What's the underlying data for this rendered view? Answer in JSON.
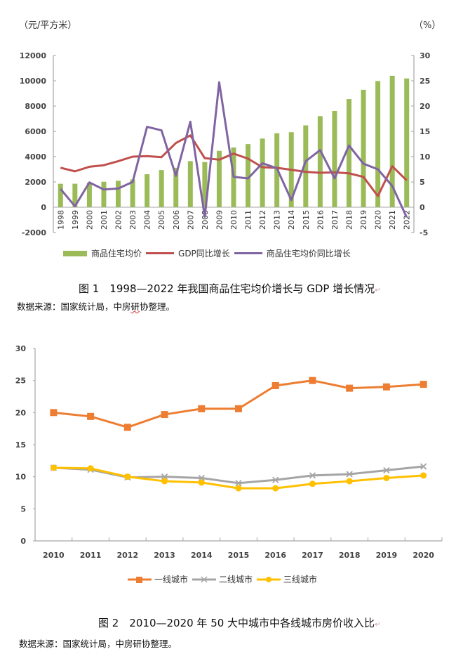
{
  "figure1": {
    "left_unit": "（元/平方米）",
    "right_unit": "（%）",
    "caption": "图 1　1998—2022 年我国商品住宅均价增长与 GDP 增长情况",
    "source_prefix": "数据来源：国家统计局，中房",
    "source_marked": "研",
    "source_suffix": "协整理。",
    "colors": {
      "bar": "#9bbb59",
      "gdp": "#c0504d",
      "price_growth": "#8064a2",
      "axis": "#a6a6a6"
    }
  },
  "figure2": {
    "caption": "图 2　2010—2020 年 50 大中城市中各线城市房价收入比",
    "source": "数据来源：国家统计局，中房研协整理。",
    "colors": {
      "tier1": "#ed7d31",
      "tier2": "#a5a5a5",
      "tier3": "#ffc000",
      "axis": "#a6a6a6"
    }
  },
  "chart_data": [
    {
      "type": "bar+line",
      "title": "1998—2022 年我国商品住宅均价增长与 GDP 增长情况",
      "categories": [
        "1998",
        "1999",
        "2000",
        "2001",
        "2002",
        "2003",
        "2004",
        "2005",
        "2006",
        "2007",
        "2008",
        "2009",
        "2010",
        "2011",
        "2012",
        "2013",
        "2014",
        "2015",
        "2016",
        "2017",
        "2018",
        "2019",
        "2020",
        "2021",
        "2022"
      ],
      "y_left": {
        "label": "（元/平方米）",
        "lim": [
          -2000,
          12000
        ],
        "ticks": [
          "-2000",
          "0",
          "2000",
          "4000",
          "6000",
          "8000",
          "10000",
          "12000"
        ]
      },
      "y_right": {
        "label": "（%）",
        "lim": [
          -5,
          30
        ],
        "ticks": [
          "-5",
          "0",
          "5",
          "10",
          "15",
          "20",
          "25",
          "30"
        ]
      },
      "series": [
        {
          "name": "商品住宅均价",
          "type": "bar",
          "axis": "left",
          "values": [
            1854,
            1857,
            1948,
            2017,
            2092,
            2197,
            2608,
            2937,
            3119,
            3645,
            3576,
            4459,
            4725,
            4993,
            5430,
            5850,
            5933,
            6473,
            7203,
            7614,
            8553,
            9287,
            9980,
            10396,
            10185
          ]
        },
        {
          "name": "GDP同比增长",
          "type": "line",
          "axis": "right",
          "values": [
            7.8,
            7.1,
            8.0,
            8.3,
            9.1,
            10.0,
            10.1,
            9.9,
            12.7,
            14.2,
            9.7,
            9.4,
            10.6,
            9.6,
            7.9,
            7.8,
            7.4,
            7.0,
            6.8,
            6.9,
            6.7,
            6.0,
            2.2,
            8.1,
            5.3
          ]
        },
        {
          "name": "商品住宅均价同比增长",
          "type": "line",
          "axis": "right",
          "values": [
            3.6,
            0.2,
            4.9,
            3.5,
            3.7,
            5.0,
            15.9,
            15.2,
            6.2,
            16.9,
            -1.9,
            24.7,
            6.0,
            5.7,
            8.7,
            7.7,
            1.4,
            9.1,
            11.3,
            5.7,
            12.2,
            8.6,
            7.5,
            4.2,
            -2.0
          ]
        }
      ],
      "legend": "bottom",
      "grid": false
    },
    {
      "type": "line",
      "title": "2010—2020 年 50 大中城市中各线城市房价收入比",
      "categories": [
        "2010",
        "2011",
        "2012",
        "2013",
        "2014",
        "2015",
        "2016",
        "2017",
        "2018",
        "2019",
        "2020"
      ],
      "ylim": [
        0,
        30
      ],
      "yticks": [
        "0",
        "5",
        "10",
        "15",
        "20",
        "25",
        "30"
      ],
      "series": [
        {
          "name": "一线城市",
          "marker": "square",
          "values": [
            20.0,
            19.4,
            17.7,
            19.7,
            20.6,
            20.6,
            24.2,
            25.0,
            23.8,
            24.0,
            24.4
          ]
        },
        {
          "name": "二线城市",
          "marker": "x",
          "values": [
            11.4,
            11.1,
            9.9,
            10.0,
            9.8,
            9.0,
            9.5,
            10.2,
            10.4,
            11.0,
            11.6
          ]
        },
        {
          "name": "三线城市",
          "marker": "circle",
          "values": [
            11.4,
            11.3,
            10.0,
            9.3,
            9.1,
            8.2,
            8.2,
            8.9,
            9.3,
            9.8,
            10.2
          ]
        }
      ],
      "legend": "bottom",
      "grid": false
    }
  ]
}
